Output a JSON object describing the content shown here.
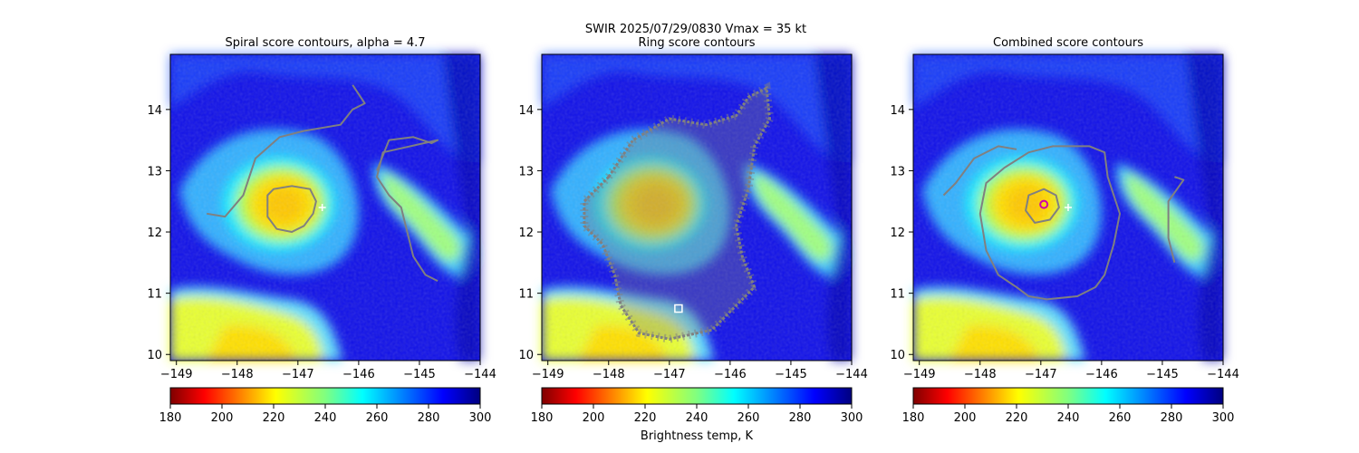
{
  "figure": {
    "suptitle_line1": "SWIR  2025/07/29/0830    Vmax = 35 kt",
    "colorbar_label": "Brightness temp, K"
  },
  "chart_data": [
    {
      "type": "heatmap",
      "title": "Spiral score contours, alpha =  4.7",
      "xlim": [
        -149.1,
        -144.0
      ],
      "ylim": [
        9.9,
        14.9
      ],
      "xticks": [
        -149,
        -148,
        -147,
        -146,
        -145,
        -144
      ],
      "yticks": [
        10,
        11,
        12,
        13,
        14
      ],
      "xticklabels": [
        "−149",
        "−148",
        "−147",
        "−146",
        "−145",
        "−144"
      ],
      "yticklabels": [
        "10",
        "11",
        "12",
        "13",
        "14"
      ],
      "colorbar": {
        "range": [
          180,
          300
        ],
        "ticks": [
          180,
          200,
          220,
          240,
          260,
          280,
          300
        ],
        "colormap": "jet_r"
      },
      "contours": [
        {
          "color": "#808080",
          "points": [
            [
              -148.5,
              12.3
            ],
            [
              -148.2,
              12.25
            ],
            [
              -147.9,
              12.6
            ],
            [
              -147.7,
              13.2
            ],
            [
              -147.3,
              13.55
            ],
            [
              -146.9,
              13.65
            ],
            [
              -146.3,
              13.75
            ],
            [
              -146.1,
              14.0
            ],
            [
              -145.9,
              14.1
            ],
            [
              -146.1,
              14.4
            ]
          ]
        },
        {
          "color": "#808080",
          "points": [
            [
              -145.7,
              13.0
            ],
            [
              -145.5,
              13.5
            ],
            [
              -145.1,
              13.55
            ],
            [
              -144.8,
              13.45
            ],
            [
              -144.7,
              13.5
            ],
            [
              -145.6,
              13.3
            ],
            [
              -145.7,
              12.9
            ],
            [
              -145.5,
              12.6
            ],
            [
              -145.3,
              12.4
            ],
            [
              -145.2,
              12.0
            ],
            [
              -145.1,
              11.6
            ],
            [
              -144.9,
              11.3
            ],
            [
              -144.7,
              11.2
            ]
          ]
        },
        {
          "color": "#808080",
          "closed": true,
          "points": [
            [
              -147.5,
              12.6
            ],
            [
              -147.4,
              12.7
            ],
            [
              -147.1,
              12.75
            ],
            [
              -146.8,
              12.7
            ],
            [
              -146.7,
              12.5
            ],
            [
              -146.75,
              12.3
            ],
            [
              -146.9,
              12.1
            ],
            [
              -147.1,
              12.0
            ],
            [
              -147.35,
              12.05
            ],
            [
              -147.5,
              12.25
            ]
          ]
        }
      ],
      "markers": [
        {
          "symbol": "+",
          "color": "#ffffff",
          "x": -146.6,
          "y": 12.4
        }
      ]
    },
    {
      "type": "heatmap",
      "title": "Ring score contours",
      "xlim": [
        -149.1,
        -144.0
      ],
      "ylim": [
        9.9,
        14.9
      ],
      "xticks": [
        -149,
        -148,
        -147,
        -146,
        -145,
        -144
      ],
      "yticks": [
        10,
        11,
        12,
        13,
        14
      ],
      "xticklabels": [
        "−149",
        "−148",
        "−147",
        "−146",
        "−145",
        "−144"
      ],
      "yticklabels": [
        "10",
        "11",
        "12",
        "13",
        "14"
      ],
      "colorbar": {
        "range": [
          180,
          300
        ],
        "ticks": [
          180,
          200,
          220,
          240,
          260,
          280,
          300
        ],
        "colormap": "jet_r"
      },
      "contour_region": {
        "color": "#808080",
        "points": [
          [
            -148.0,
            12.9
          ],
          [
            -147.6,
            13.5
          ],
          [
            -147.0,
            13.85
          ],
          [
            -146.4,
            13.75
          ],
          [
            -145.9,
            13.9
          ],
          [
            -145.7,
            14.2
          ],
          [
            -145.4,
            14.35
          ],
          [
            -145.35,
            13.85
          ],
          [
            -145.6,
            13.4
          ],
          [
            -145.7,
            12.7
          ],
          [
            -145.9,
            12.1
          ],
          [
            -145.8,
            11.6
          ],
          [
            -145.6,
            11.1
          ],
          [
            -145.9,
            10.8
          ],
          [
            -146.3,
            10.4
          ],
          [
            -147.0,
            10.25
          ],
          [
            -147.5,
            10.35
          ],
          [
            -147.8,
            10.8
          ],
          [
            -147.9,
            11.3
          ],
          [
            -148.1,
            11.8
          ],
          [
            -148.4,
            12.1
          ],
          [
            -148.4,
            12.5
          ]
        ]
      },
      "markers": [
        {
          "symbol": "square",
          "color": "#ffffff",
          "x": -146.85,
          "y": 10.75
        }
      ]
    },
    {
      "type": "heatmap",
      "title": "Combined score contours",
      "xlim": [
        -149.1,
        -144.0
      ],
      "ylim": [
        9.9,
        14.9
      ],
      "xticks": [
        -149,
        -148,
        -147,
        -146,
        -145,
        -144
      ],
      "yticks": [
        10,
        11,
        12,
        13,
        14
      ],
      "xticklabels": [
        "−149",
        "−148",
        "−147",
        "−146",
        "−145",
        "−144"
      ],
      "yticklabels": [
        "10",
        "11",
        "12",
        "13",
        "14"
      ],
      "colorbar": {
        "range": [
          180,
          300
        ],
        "ticks": [
          180,
          200,
          220,
          240,
          260,
          280,
          300
        ],
        "colormap": "jet_r"
      },
      "contours": [
        {
          "color": "#808080",
          "points": [
            [
              -148.6,
              12.6
            ],
            [
              -148.4,
              12.8
            ],
            [
              -148.1,
              13.2
            ],
            [
              -147.7,
              13.4
            ],
            [
              -147.4,
              13.35
            ]
          ]
        },
        {
          "color": "#808080",
          "closed": true,
          "points": [
            [
              -147.6,
              13.05
            ],
            [
              -147.2,
              13.3
            ],
            [
              -146.8,
              13.4
            ],
            [
              -146.2,
              13.4
            ],
            [
              -145.95,
              13.3
            ],
            [
              -145.9,
              12.9
            ],
            [
              -145.7,
              12.3
            ],
            [
              -145.8,
              11.8
            ],
            [
              -145.95,
              11.3
            ],
            [
              -146.1,
              11.1
            ],
            [
              -146.4,
              10.95
            ],
            [
              -146.9,
              10.9
            ],
            [
              -147.2,
              10.95
            ],
            [
              -147.4,
              11.1
            ],
            [
              -147.7,
              11.3
            ],
            [
              -147.9,
              11.7
            ],
            [
              -148.0,
              12.3
            ],
            [
              -147.9,
              12.8
            ]
          ]
        },
        {
          "color": "#808080",
          "points": [
            [
              -144.8,
              12.9
            ],
            [
              -144.65,
              12.85
            ],
            [
              -144.9,
              12.5
            ],
            [
              -144.9,
              11.9
            ],
            [
              -144.8,
              11.5
            ]
          ]
        },
        {
          "color": "#808080",
          "closed": true,
          "points": [
            [
              -147.2,
              12.6
            ],
            [
              -146.95,
              12.7
            ],
            [
              -146.75,
              12.6
            ],
            [
              -146.7,
              12.4
            ],
            [
              -146.85,
              12.2
            ],
            [
              -147.1,
              12.15
            ],
            [
              -147.25,
              12.35
            ]
          ]
        }
      ],
      "markers": [
        {
          "symbol": "circle",
          "color": "#cc00aa",
          "x": -146.95,
          "y": 12.45
        },
        {
          "symbol": "+",
          "color": "#ffffff",
          "x": -146.55,
          "y": 12.4
        }
      ]
    }
  ]
}
